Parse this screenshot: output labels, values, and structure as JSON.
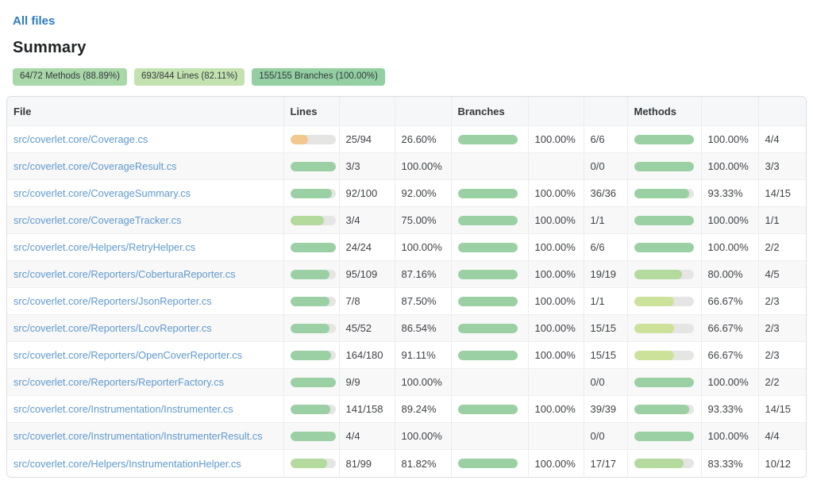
{
  "page": {
    "back_link": "All files",
    "title": "Summary"
  },
  "badges": [
    {
      "label": "64/72 Methods (88.89%)",
      "bg": "#a8d7a8"
    },
    {
      "label": "693/844 Lines (82.11%)",
      "bg": "#c3e2b0"
    },
    {
      "label": "155/155 Branches (100.00%)",
      "bg": "#93cfa2"
    }
  ],
  "table": {
    "headers": {
      "file": "File",
      "lines": "Lines",
      "branches": "Branches",
      "methods": "Methods"
    },
    "bar_colors": {
      "green": "#9bd0a4",
      "light-green": "#b4da9e",
      "yellow-green": "#cce29b",
      "orange": "#f2c88e"
    },
    "rows": [
      {
        "file": "src/coverlet.core/Coverage.cs",
        "lines": {
          "bar": 26.6,
          "color": "orange",
          "count": "25/94",
          "pct": "26.60%"
        },
        "branches": {
          "bar": 100,
          "color": "green",
          "pct": "100.00%",
          "count": "6/6"
        },
        "methods": {
          "bar": 100,
          "color": "green",
          "pct": "100.00%",
          "count": "4/4"
        }
      },
      {
        "file": "src/coverlet.core/CoverageResult.cs",
        "lines": {
          "bar": 100,
          "color": "green",
          "count": "3/3",
          "pct": "100.00%"
        },
        "branches": {
          "bar": null,
          "color": null,
          "pct": "",
          "count": "0/0"
        },
        "methods": {
          "bar": 100,
          "color": "green",
          "pct": "100.00%",
          "count": "3/3"
        }
      },
      {
        "file": "src/coverlet.core/CoverageSummary.cs",
        "lines": {
          "bar": 92,
          "color": "green",
          "count": "92/100",
          "pct": "92.00%"
        },
        "branches": {
          "bar": 100,
          "color": "green",
          "pct": "100.00%",
          "count": "36/36"
        },
        "methods": {
          "bar": 93.33,
          "color": "green",
          "pct": "93.33%",
          "count": "14/15"
        }
      },
      {
        "file": "src/coverlet.core/CoverageTracker.cs",
        "lines": {
          "bar": 75,
          "color": "light-green",
          "count": "3/4",
          "pct": "75.00%"
        },
        "branches": {
          "bar": 100,
          "color": "green",
          "pct": "100.00%",
          "count": "1/1"
        },
        "methods": {
          "bar": 100,
          "color": "green",
          "pct": "100.00%",
          "count": "1/1"
        }
      },
      {
        "file": "src/coverlet.core/Helpers/RetryHelper.cs",
        "lines": {
          "bar": 100,
          "color": "green",
          "count": "24/24",
          "pct": "100.00%"
        },
        "branches": {
          "bar": 100,
          "color": "green",
          "pct": "100.00%",
          "count": "6/6"
        },
        "methods": {
          "bar": 100,
          "color": "green",
          "pct": "100.00%",
          "count": "2/2"
        }
      },
      {
        "file": "src/coverlet.core/Reporters/CoberturaReporter.cs",
        "lines": {
          "bar": 87.16,
          "color": "green",
          "count": "95/109",
          "pct": "87.16%"
        },
        "branches": {
          "bar": 100,
          "color": "green",
          "pct": "100.00%",
          "count": "19/19"
        },
        "methods": {
          "bar": 80,
          "color": "light-green",
          "pct": "80.00%",
          "count": "4/5"
        }
      },
      {
        "file": "src/coverlet.core/Reporters/JsonReporter.cs",
        "lines": {
          "bar": 87.5,
          "color": "green",
          "count": "7/8",
          "pct": "87.50%"
        },
        "branches": {
          "bar": 100,
          "color": "green",
          "pct": "100.00%",
          "count": "1/1"
        },
        "methods": {
          "bar": 66.67,
          "color": "yellow-green",
          "pct": "66.67%",
          "count": "2/3"
        }
      },
      {
        "file": "src/coverlet.core/Reporters/LcovReporter.cs",
        "lines": {
          "bar": 86.54,
          "color": "green",
          "count": "45/52",
          "pct": "86.54%"
        },
        "branches": {
          "bar": 100,
          "color": "green",
          "pct": "100.00%",
          "count": "15/15"
        },
        "methods": {
          "bar": 66.67,
          "color": "yellow-green",
          "pct": "66.67%",
          "count": "2/3"
        }
      },
      {
        "file": "src/coverlet.core/Reporters/OpenCoverReporter.cs",
        "lines": {
          "bar": 91.11,
          "color": "green",
          "count": "164/180",
          "pct": "91.11%"
        },
        "branches": {
          "bar": 100,
          "color": "green",
          "pct": "100.00%",
          "count": "15/15"
        },
        "methods": {
          "bar": 66.67,
          "color": "yellow-green",
          "pct": "66.67%",
          "count": "2/3"
        }
      },
      {
        "file": "src/coverlet.core/Reporters/ReporterFactory.cs",
        "lines": {
          "bar": 100,
          "color": "green",
          "count": "9/9",
          "pct": "100.00%"
        },
        "branches": {
          "bar": null,
          "color": null,
          "pct": "",
          "count": "0/0"
        },
        "methods": {
          "bar": 100,
          "color": "green",
          "pct": "100.00%",
          "count": "2/2"
        }
      },
      {
        "file": "src/coverlet.core/Instrumentation/Instrumenter.cs",
        "lines": {
          "bar": 89.24,
          "color": "green",
          "count": "141/158",
          "pct": "89.24%"
        },
        "branches": {
          "bar": 100,
          "color": "green",
          "pct": "100.00%",
          "count": "39/39"
        },
        "methods": {
          "bar": 93.33,
          "color": "green",
          "pct": "93.33%",
          "count": "14/15"
        }
      },
      {
        "file": "src/coverlet.core/Instrumentation/InstrumenterResult.cs",
        "lines": {
          "bar": 100,
          "color": "green",
          "count": "4/4",
          "pct": "100.00%"
        },
        "branches": {
          "bar": null,
          "color": null,
          "pct": "",
          "count": "0/0"
        },
        "methods": {
          "bar": 100,
          "color": "green",
          "pct": "100.00%",
          "count": "4/4"
        }
      },
      {
        "file": "src/coverlet.core/Helpers/InstrumentationHelper.cs",
        "lines": {
          "bar": 81.82,
          "color": "light-green",
          "count": "81/99",
          "pct": "81.82%"
        },
        "branches": {
          "bar": 100,
          "color": "green",
          "pct": "100.00%",
          "count": "17/17"
        },
        "methods": {
          "bar": 83.33,
          "color": "light-green",
          "pct": "83.33%",
          "count": "10/12"
        }
      }
    ]
  }
}
